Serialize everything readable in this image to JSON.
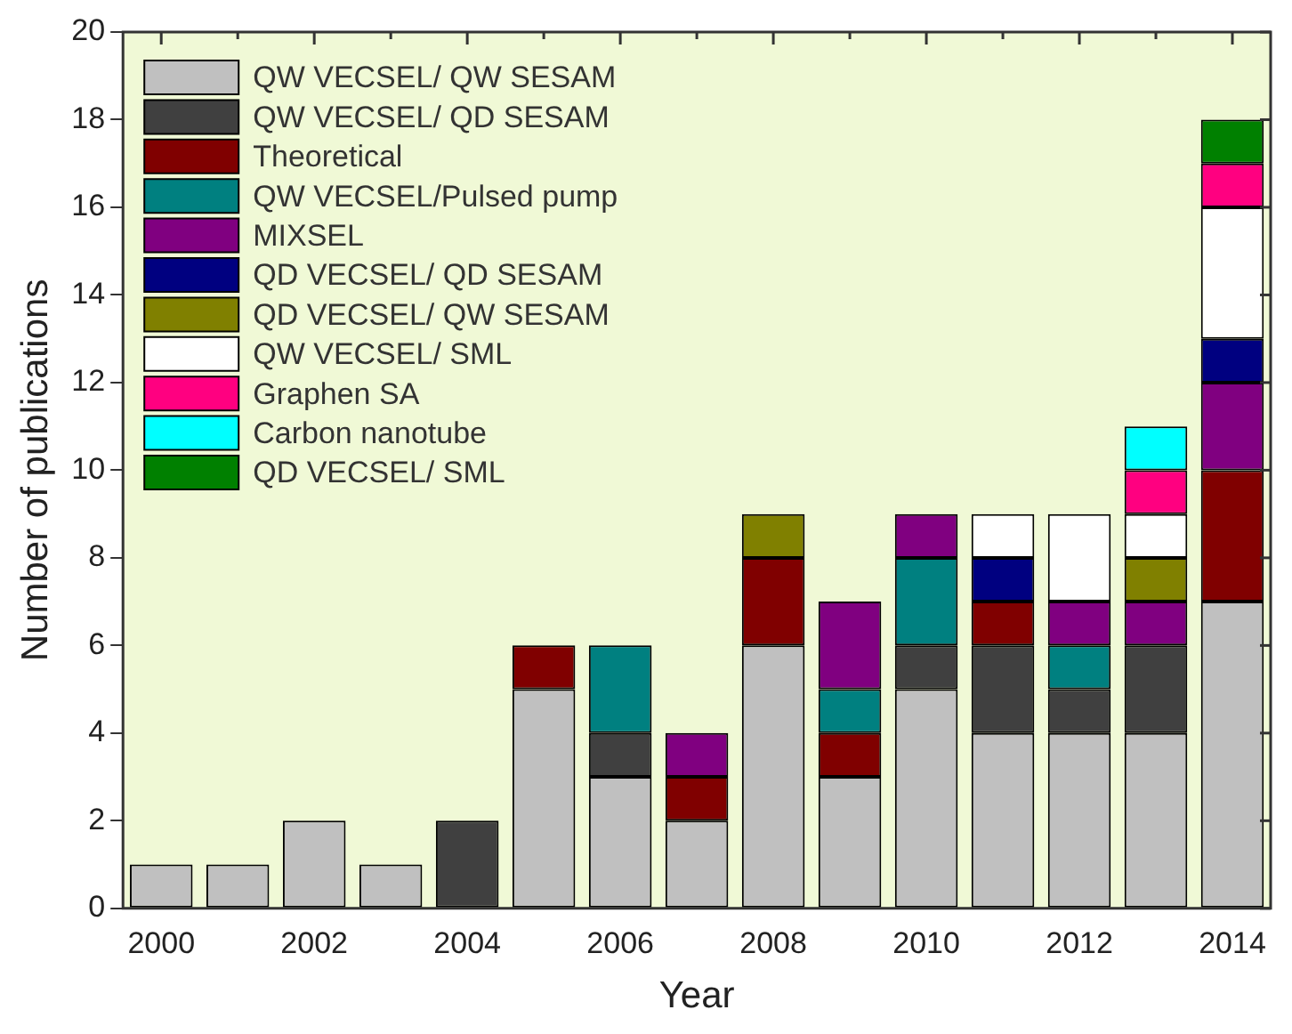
{
  "chart_data": {
    "type": "bar",
    "stacked": true,
    "xlabel": "Year",
    "ylabel": "Number of publications",
    "categories": [
      "2000",
      null,
      "2002",
      null,
      "2004",
      null,
      "2006",
      null,
      "2008",
      null,
      "2010",
      null,
      "2012",
      null,
      "2014"
    ],
    "ylim": [
      0,
      20
    ],
    "yticks": [
      0,
      2,
      4,
      6,
      8,
      10,
      12,
      14,
      16,
      18,
      20
    ],
    "grid": false,
    "legend": "top left",
    "series": [
      {
        "name": "QW VECSEL/ QW SESAM",
        "color": "#c0c0c0",
        "values": [
          1,
          1,
          2,
          1,
          null,
          5,
          3,
          2,
          6,
          3,
          5,
          4,
          4,
          4,
          7
        ]
      },
      {
        "name": "QW VECSEL/ QD SESAM",
        "color": "#404040",
        "values": [
          null,
          null,
          null,
          null,
          2,
          null,
          1,
          null,
          null,
          null,
          1,
          2,
          1,
          2,
          null
        ]
      },
      {
        "name": "Theoretical",
        "color": "#800000",
        "values": [
          null,
          null,
          null,
          null,
          null,
          1,
          null,
          1,
          2,
          1,
          null,
          1,
          null,
          null,
          3
        ]
      },
      {
        "name": "QW VECSEL/Pulsed pump",
        "color": "#008080",
        "values": [
          null,
          null,
          null,
          null,
          null,
          null,
          2,
          null,
          null,
          1,
          2,
          null,
          1,
          null,
          null
        ]
      },
      {
        "name": "MIXSEL",
        "color": "#800080",
        "values": [
          null,
          null,
          null,
          null,
          null,
          null,
          null,
          1,
          null,
          2,
          1,
          null,
          1,
          1,
          2
        ]
      },
      {
        "name": "QD VECSEL/ QD SESAM",
        "color": "#000080",
        "values": [
          null,
          null,
          null,
          null,
          null,
          null,
          null,
          null,
          null,
          null,
          null,
          1,
          null,
          null,
          1
        ]
      },
      {
        "name": "QD VECSEL/ QW SESAM",
        "color": "#808000",
        "values": [
          null,
          null,
          null,
          null,
          null,
          null,
          null,
          null,
          1,
          null,
          null,
          null,
          null,
          1,
          null
        ]
      },
      {
        "name": "QW VECSEL/ SML",
        "color": "#ffffff",
        "values": [
          null,
          null,
          null,
          null,
          null,
          null,
          null,
          null,
          null,
          null,
          null,
          1,
          2,
          1,
          3
        ]
      },
      {
        "name": "Graphen SA",
        "color": "#ff0080",
        "values": [
          null,
          null,
          null,
          null,
          null,
          null,
          null,
          null,
          null,
          null,
          null,
          null,
          null,
          1,
          1
        ]
      },
      {
        "name": "Carbon nanotube",
        "color": "#00ffff",
        "values": [
          null,
          null,
          null,
          null,
          null,
          null,
          null,
          null,
          null,
          null,
          null,
          null,
          null,
          1,
          null
        ]
      },
      {
        "name": "QD VECSEL/ SML",
        "color": "#008000",
        "values": [
          null,
          null,
          null,
          null,
          null,
          null,
          null,
          null,
          null,
          null,
          null,
          null,
          null,
          null,
          1
        ]
      }
    ]
  }
}
